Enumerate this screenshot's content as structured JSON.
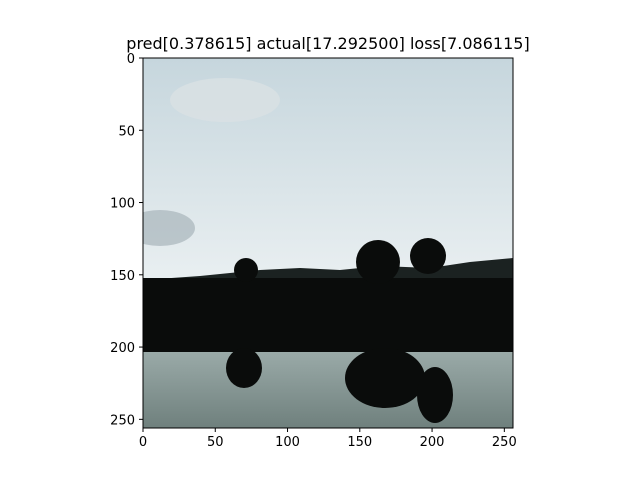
{
  "chart_data": {
    "type": "image",
    "title": "pred[0.378615] actual[17.292500] loss[7.086115]",
    "xlabel": "",
    "ylabel": "",
    "xlim": [
      0,
      256
    ],
    "ylim": [
      256,
      0
    ],
    "x_ticks": [
      0,
      50,
      100,
      150,
      200,
      250
    ],
    "y_ticks": [
      0,
      50,
      100,
      150,
      200,
      250
    ],
    "image_description_colors": {
      "sky_top": "#c9d8df",
      "sky_bottom": "#e8eef0",
      "silhouette": "#0a0c0b",
      "water": "#8a9a98"
    }
  }
}
